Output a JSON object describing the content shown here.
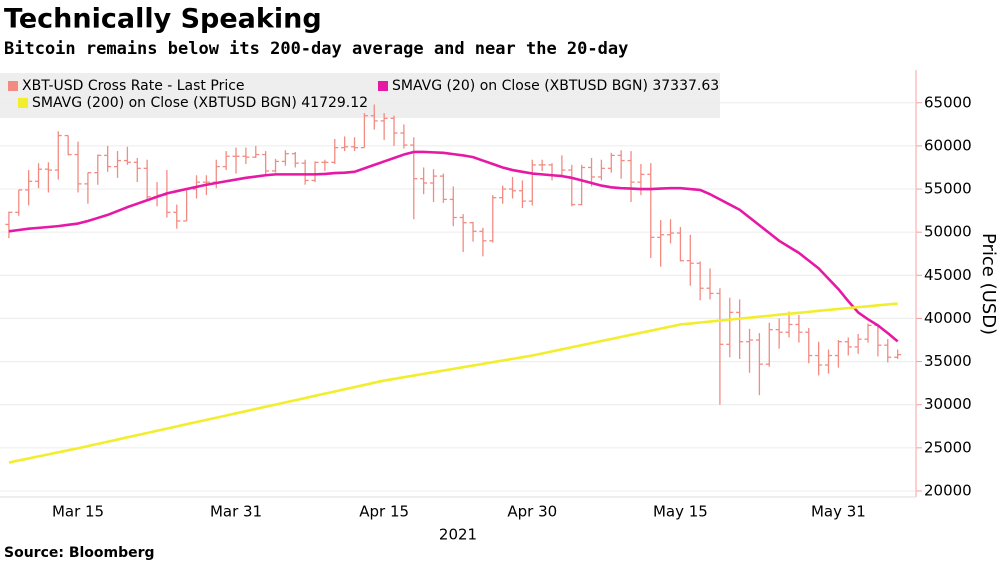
{
  "chart_data": {
    "type": "ohlc",
    "title": "Technically Speaking",
    "subtitle": "Bitcoin remains below its 200-day average and near the 20-day",
    "source": "Source: Bloomberg",
    "x_label": "2021",
    "y_label": "Price (USD)",
    "categories": [
      null,
      null,
      null,
      null,
      null,
      null,
      null,
      "Mar 15",
      null,
      null,
      null,
      null,
      null,
      null,
      null,
      null,
      null,
      null,
      null,
      null,
      null,
      null,
      null,
      "Mar 31",
      null,
      null,
      null,
      null,
      null,
      null,
      null,
      null,
      null,
      null,
      null,
      null,
      null,
      null,
      "Apr 15",
      null,
      null,
      null,
      null,
      null,
      null,
      null,
      null,
      null,
      null,
      null,
      null,
      null,
      null,
      "Apr 30",
      null,
      null,
      null,
      null,
      null,
      null,
      null,
      null,
      null,
      null,
      null,
      null,
      null,
      null,
      "May 15",
      null,
      null,
      null,
      null,
      null,
      null,
      null,
      null,
      null,
      null,
      null,
      null,
      null,
      null,
      null,
      "May 31",
      null,
      null,
      null,
      null,
      null,
      null
    ],
    "ylim": [
      19300,
      68800
    ],
    "yticks": [
      20000,
      25000,
      30000,
      35000,
      40000,
      45000,
      50000,
      55000,
      60000,
      65000
    ],
    "grid": true,
    "series": [
      {
        "name": "XBT-USD Cross Rate - Last Price",
        "type": "ohlc",
        "color": "#f28b82",
        "open": [
          50900,
          52300,
          54900,
          55900,
          57300,
          57200,
          61200,
          59000,
          55600,
          56900,
          58900,
          57600,
          58300,
          58100,
          57400,
          54100,
          54300,
          52300,
          51300,
          55000,
          55800,
          55800,
          57600,
          58800,
          58800,
          58700,
          59000,
          57100,
          58200,
          59100,
          58000,
          56000,
          58100,
          58100,
          59800,
          59900,
          59800,
          63500,
          62900,
          63200,
          61500,
          60100,
          56200,
          55700,
          56500,
          53800,
          51700,
          51100,
          50100,
          49000,
          54000,
          55000,
          54800,
          53600,
          57800,
          57800,
          56600,
          57200,
          53200,
          57500,
          56400,
          57400,
          58900,
          58300,
          55800,
          56700,
          49400,
          49700,
          49900,
          46700,
          46400,
          43500,
          42900,
          37000,
          40700,
          37300,
          37500,
          34700,
          38700,
          38400,
          39300,
          38400,
          35700,
          34600,
          35700,
          37300,
          36700,
          37600,
          39200,
          36900,
          35500
        ],
        "high": [
          52400,
          54900,
          57200,
          58000,
          58100,
          61700,
          61200,
          60500,
          56900,
          59000,
          60000,
          59400,
          59900,
          58600,
          58400,
          55800,
          57200,
          53200,
          55100,
          56600,
          56600,
          58400,
          59400,
          59800,
          59800,
          60000,
          59400,
          58500,
          59500,
          59300,
          58400,
          58200,
          58400,
          60800,
          61100,
          61000,
          63800,
          64800,
          63800,
          63500,
          62500,
          61000,
          57500,
          57300,
          56800,
          55300,
          52100,
          51200,
          50500,
          54300,
          55400,
          56400,
          56000,
          58400,
          58400,
          58000,
          58900,
          57800,
          57800,
          58600,
          58400,
          59200,
          59500,
          59400,
          57900,
          58000,
          51400,
          51500,
          50600,
          49700,
          46600,
          45800,
          43500,
          42400,
          42200,
          38800,
          38300,
          39500,
          40000,
          40800,
          40400,
          38900,
          37300,
          36400,
          37500,
          37800,
          38200,
          39400,
          39300,
          37600,
          36400
        ],
        "low": [
          49300,
          51900,
          53100,
          55100,
          54600,
          56100,
          58900,
          54600,
          53300,
          55500,
          57000,
          56300,
          57800,
          55800,
          53700,
          53000,
          51700,
          50400,
          51300,
          53900,
          54300,
          55100,
          57200,
          56800,
          57900,
          58600,
          56600,
          56900,
          57700,
          57500,
          55500,
          55800,
          57100,
          57900,
          59400,
          59400,
          59800,
          61900,
          60700,
          60000,
          59700,
          51500,
          54400,
          53500,
          53400,
          50700,
          47700,
          48900,
          47200,
          48800,
          53300,
          53900,
          52800,
          53100,
          57100,
          56000,
          56400,
          53000,
          53100,
          55300,
          56000,
          56900,
          56200,
          53500,
          54300,
          47000,
          46000,
          48700,
          46600,
          43800,
          42100,
          42200,
          30000,
          35500,
          35300,
          33700,
          31100,
          34400,
          36500,
          37800,
          37200,
          34800,
          33400,
          33600,
          34300,
          35700,
          35900,
          37200,
          35600,
          34900,
          35300
        ],
        "close": [
          52300,
          54900,
          55900,
          57300,
          57200,
          61200,
          59000,
          55600,
          56900,
          58900,
          57600,
          58300,
          58100,
          57400,
          54100,
          54300,
          52300,
          51300,
          55000,
          55800,
          55800,
          57600,
          58800,
          58800,
          58700,
          59000,
          57100,
          58200,
          59100,
          58000,
          56000,
          58100,
          58100,
          59800,
          59900,
          59800,
          63500,
          62900,
          63200,
          61500,
          60100,
          56200,
          55700,
          56500,
          53800,
          51700,
          51100,
          50100,
          49000,
          54000,
          55000,
          54800,
          53600,
          57800,
          57800,
          56600,
          57200,
          53200,
          57500,
          56400,
          57400,
          58900,
          58300,
          55800,
          56700,
          49400,
          49700,
          49900,
          46700,
          46400,
          43500,
          42900,
          37000,
          40700,
          37300,
          37500,
          34700,
          38700,
          38400,
          39300,
          38400,
          35700,
          34600,
          35700,
          37300,
          36700,
          37600,
          39200,
          36900,
          35500,
          35800
        ]
      },
      {
        "name": "SMAVG (20)  on Close (XBTUSD BGN) 37337.63",
        "type": "line",
        "color": "#e619a5",
        "values": [
          50100,
          50250,
          50400,
          50500,
          50600,
          50700,
          50850,
          51000,
          51300,
          51650,
          52000,
          52450,
          52900,
          53300,
          53700,
          54100,
          54500,
          54750,
          55000,
          55250,
          55500,
          55700,
          55900,
          56100,
          56300,
          56450,
          56600,
          56700,
          56700,
          56700,
          56700,
          56700,
          56750,
          56850,
          56900,
          57000,
          57400,
          57800,
          58200,
          58600,
          59000,
          59300,
          59300,
          59250,
          59200,
          59050,
          58900,
          58700,
          58300,
          57900,
          57500,
          57200,
          57000,
          56800,
          56700,
          56600,
          56500,
          56300,
          56000,
          55700,
          55400,
          55200,
          55100,
          55050,
          55000,
          55000,
          55050,
          55100,
          55100,
          55000,
          54900,
          54400,
          53800,
          53200,
          52600,
          51700,
          50800,
          49900,
          49000,
          48300,
          47600,
          46700,
          45800,
          44600,
          43400,
          42000,
          40700,
          39900,
          39200,
          38300,
          37337.63
        ]
      },
      {
        "name": "SMAVG (200)  on Close (XBTUSD BGN) 41729.12",
        "type": "line",
        "color": "#f2ee2e",
        "values": [
          23300,
          23540,
          23770,
          24010,
          24240,
          24480,
          24710,
          24950,
          25200,
          25460,
          25710,
          25960,
          26220,
          26470,
          26720,
          26980,
          27230,
          27480,
          27740,
          27990,
          28240,
          28490,
          28750,
          29000,
          29250,
          29510,
          29760,
          30010,
          30270,
          30520,
          30770,
          31030,
          31280,
          31530,
          31790,
          32040,
          32290,
          32550,
          32800,
          32990,
          33190,
          33380,
          33570,
          33770,
          33960,
          34150,
          34350,
          34540,
          34730,
          34930,
          35120,
          35310,
          35510,
          35700,
          35940,
          36180,
          36420,
          36660,
          36900,
          37140,
          37380,
          37620,
          37860,
          38100,
          38340,
          38580,
          38820,
          39060,
          39300,
          39410,
          39530,
          39640,
          39750,
          39860,
          39980,
          40090,
          40200,
          40310,
          40430,
          40540,
          40650,
          40760,
          40880,
          40990,
          41100,
          41200,
          41310,
          41410,
          41520,
          41620,
          41729.12
        ]
      }
    ]
  }
}
